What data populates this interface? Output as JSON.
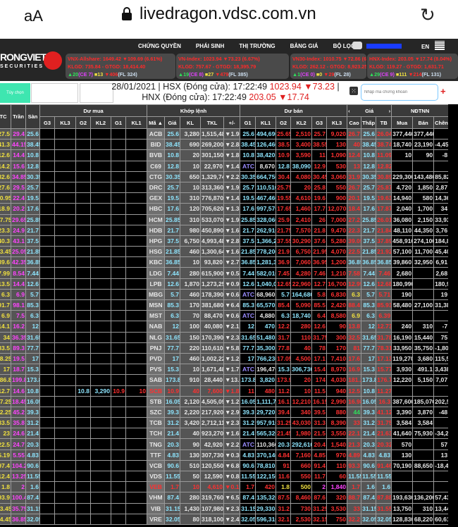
{
  "browser": {
    "text_size": "aA",
    "url": "livedragon.vdsc.com.vn",
    "lock_icon": "lock-icon",
    "reload_icon": "reload-icon"
  },
  "header": {
    "logo_text": "RONGVIET",
    "logo_sub": "SECURITIES",
    "nav": [
      "CHỨNG QUYỀN",
      "PHÁI SINH",
      "THỊ TRƯỜNG",
      "BẢNG GIÁ",
      "BỘ LỌC"
    ],
    "hotline": "+84 28 6299 2006",
    "lang": "EN",
    "indices": [
      {
        "line1": "VNX-Allshare: 1649.42 ▼109.69 (6.61%)",
        "line2": "KLGD: 735.84 - GTGD: 18,414.40",
        "up": "▲20",
        "ce": "(CE 7)",
        "ref": "■13",
        "down": "▼406",
        "fl": "(FL 324)"
      },
      {
        "line1": "VN-Index: 1023.94 ▼73.23 (6.67%)",
        "line2": "KLGD: 757.67 - GTGD: 18,395.79",
        "up": "▲19",
        "ce": "(CE 8)",
        "ref": "■27",
        "down": "▼479",
        "fl": "(FL 385)"
      },
      {
        "line1": "VN30-Index: 1010.75 ▼72.86 (6.73%)",
        "line2": "KLGD: 262.12 - GTGD: 8,923.25",
        "up": "▲1",
        "ce": "(CE 0)",
        "ref": "■0",
        "down": "▼29",
        "fl": "(FL 28)"
      },
      {
        "line1": "HNX-Index: 203.05 ▼17.74 (8.04%)",
        "line2": "KLGD: 119.27 - GTGD: 1,631.71",
        "up": "▲29",
        "ce": "(CE 9)",
        "ref": "■111",
        "down": "▼214",
        "fl": "(FL 131)"
      }
    ]
  },
  "toolbar": {
    "options_button": "Tùy chọn",
    "line1": "28/01/2021 | HSX (Đóng cửa): 17:22:49 ",
    "hsx_value": "1023.94 ▼73.23",
    "sep": " |",
    "line2": "HNX (Đóng cửa): 17:22:49 ",
    "hnx_value": "203.05 ▼17.74",
    "search_placeholder": "Nhập mã chứng khoán",
    "add": "+"
  },
  "table": {
    "groups": {
      "buy": "Dư mua",
      "match": "Khớp lệnh",
      "sell": "Dư bán",
      "price": "Giá",
      "foreign": "NĐTNN",
      "prev": "‹",
      "next": "›"
    },
    "columns": [
      "TC",
      "Trần",
      "Sàn",
      "G3",
      "KL3",
      "G2",
      "KL2",
      "G1",
      "KL1",
      "Mã ▲",
      "Giá",
      "KL",
      "TKL",
      "+/-",
      "G1",
      "KL1",
      "G2",
      "KL2",
      "G3",
      "KL3",
      "Cao",
      "Thấp",
      "TB",
      "Mua",
      "Bán",
      "Chênh"
    ],
    "colors": {
      "up": "#2fe05b",
      "down": "#ff3030",
      "ref": "#f0e040",
      "ceiling": "#ff44ff",
      "floor": "#8fe6ff"
    },
    "rows": [
      [
        "27.5",
        "29.4",
        "25.6",
        "",
        "",
        "",
        "",
        "",
        "",
        "ACB",
        "25.6",
        "3,280",
        "1,515,480",
        "▼1.9",
        "25.6",
        "494,690",
        "25.65",
        "2,510",
        "25.7",
        "9,020",
        "26.7",
        "25.6",
        "26.04",
        "377,440",
        "377,440.9",
        ""
      ],
      [
        "41.3",
        "44.15",
        "38.45",
        "",
        "",
        "",
        "",
        "",
        "",
        "BID",
        "38.45",
        "690",
        "269,200",
        "▼2.85",
        "38.45",
        "126,460",
        "38.5",
        "3,400",
        "38.55",
        "130",
        "40",
        "38.45",
        "38.74",
        "18,740",
        "23,190",
        "-4,45"
      ],
      [
        "12.6",
        "14.4",
        "10.8",
        "",
        "",
        "",
        "",
        "",
        "",
        "BVB",
        "10.8",
        "20",
        "301,150",
        "▼1.8",
        "10.8",
        "38,420",
        "10.9",
        "3,590",
        "11",
        "1,090",
        "12.4",
        "10.8",
        "11.09",
        "10",
        "90",
        "-8"
      ],
      [
        "14.2",
        "15.6",
        "12.8",
        "",
        "",
        "",
        "",
        "",
        "",
        "C69",
        "12.8",
        "10",
        "22,970",
        "▼1.4",
        "ATC",
        "8,670",
        "12.8",
        "38,090",
        "12.9",
        "530",
        "13",
        "12.8",
        "12.82",
        "",
        "",
        ""
      ],
      [
        "32.6",
        "34.85",
        "30.35",
        "",
        "",
        "",
        "",
        "",
        "",
        "CTG",
        "30.35",
        "650",
        "1,329,740",
        "▼2.25",
        "30.35",
        "664,750",
        "30.4",
        "4,080",
        "30.45",
        "3,060",
        "31.9",
        "30.35",
        "30.89",
        "229,300",
        "143,480",
        "85,82"
      ],
      [
        "27.6",
        "29.5",
        "25.7",
        "",
        "",
        "",
        "",
        "",
        "",
        "DRC",
        "25.7",
        "10",
        "313,360",
        "▼1.9",
        "25.7",
        "110,510",
        "25.75",
        "20",
        "25.8",
        "550",
        "26.7",
        "25.7",
        "25.87",
        "4,720",
        "1,850",
        "2,87"
      ],
      [
        "20.95",
        "22.4",
        "19.5",
        "",
        "",
        "",
        "",
        "",
        "",
        "GEX",
        "19.5",
        "310",
        "776,870",
        "▼1.45",
        "19.5",
        "467,460",
        "19.55",
        "4,610",
        "19.6",
        "900",
        "20.1",
        "19.5",
        "19.63",
        "14,940",
        "580",
        "14,36"
      ],
      [
        "18.9",
        "20.2",
        "17.6",
        "",
        "",
        "",
        "",
        "",
        "",
        "HBC",
        "17.6",
        "120",
        "705,620",
        "▼1.3",
        "17.6",
        "997,570",
        "17.65",
        "1,460",
        "17.7",
        "12,070",
        "18.4",
        "17.6",
        "17.87",
        "2,040",
        "1,700",
        "34"
      ],
      [
        "27.75",
        "29.65",
        "25.85",
        "",
        "",
        "",
        "",
        "",
        "",
        "HCM",
        "25.85",
        "310",
        "533,070",
        "▼1.9",
        "25.85",
        "328,060",
        "25.9",
        "2,410",
        "26",
        "7,000",
        "27.2",
        "25.85",
        "26.01",
        "36,080",
        "2,150",
        "33,93"
      ],
      [
        "23.3",
        "24.9",
        "21.7",
        "",
        "",
        "",
        "",
        "",
        "",
        "HDB",
        "21.7",
        "980",
        "450,890",
        "▼1.6",
        "21.7",
        "262,910",
        "21.75",
        "7,570",
        "21.8",
        "9,470",
        "22.3",
        "21.7",
        "21.84",
        "48,110",
        "44,350",
        "3,76"
      ],
      [
        "40.3",
        "43.1",
        "37.5",
        "",
        "",
        "",
        "",
        "",
        "",
        "HPG",
        "37.5",
        "6,750",
        "4,993,480",
        "▼2.8",
        "37.5",
        "1,366,210",
        "37.55",
        "30,290",
        "37.6",
        "5,280",
        "39.05",
        "37.5",
        "37.89",
        "458,910",
        "274,100",
        "184,81"
      ],
      [
        "23.45",
        "25.05",
        "21.85",
        "",
        "",
        "",
        "",
        "",
        "",
        "HSG",
        "21.85",
        "460",
        "1,300,640",
        "▼1.6",
        "21.85",
        "778,200",
        "21.9",
        "6,750",
        "21.95",
        "4,070",
        "22.5",
        "21.85",
        "21.92",
        "57,100",
        "11,700",
        "45,40"
      ],
      [
        "39.6",
        "42.35",
        "36.85",
        "",
        "",
        "",
        "",
        "",
        "",
        "KBC",
        "36.85",
        "10",
        "93,820",
        "▼2.75",
        "36.85",
        "1,281,320",
        "36.9",
        "7,060",
        "36.95",
        "1,200",
        "36.85",
        "36.85",
        "36.85",
        "39,860",
        "32,950",
        "6,91"
      ],
      [
        "7.99",
        "8.54",
        "7.44",
        "",
        "",
        "",
        "",
        "",
        "",
        "LDG",
        "7.44",
        "280",
        "615,900",
        "▼0.55",
        "7.44",
        "582,010",
        "7.45",
        "4,280",
        "7.46",
        "1,210",
        "7.58",
        "7.44",
        "7.46",
        "2,680",
        "",
        "2,68"
      ],
      [
        "13.5",
        "14.4",
        "12.6",
        "",
        "",
        "",
        "",
        "",
        "",
        "LPB",
        "12.6",
        "1,870",
        "1,273,250",
        "▼0.9",
        "12.6",
        "1,040,020",
        "12.65",
        "22,960",
        "12.7",
        "16,700",
        "12.95",
        "12.6",
        "12.68",
        "180,990",
        "",
        "180,99"
      ],
      [
        "6.3",
        "6.9",
        "5.7",
        "",
        "",
        "",
        "",
        "",
        "",
        "MBG",
        "5.7",
        "460",
        "178,390",
        "▼0.6",
        "ATC",
        "68,960",
        "5.7",
        "164,680",
        "5.8",
        "6,830",
        "6.3",
        "5.7",
        "5.71",
        "190",
        "",
        "19"
      ],
      [
        "91.7",
        "98.1",
        "85.3",
        "",
        "",
        "",
        "",
        "",
        "",
        "MSN",
        "85.3",
        "170",
        "381,680",
        "▼6.4",
        "85.3",
        "65,570",
        "85.4",
        "5,090",
        "85.5",
        "2,420",
        "88.4",
        "85.3",
        "85.93",
        "58,480",
        "27,100",
        "31,38"
      ],
      [
        "6.9",
        "7.5",
        "6.3",
        "",
        "",
        "",
        "",
        "",
        "",
        "MST",
        "6.3",
        "70",
        "88,470",
        "▼0.6",
        "ATC",
        "4,880",
        "6.3",
        "18,740",
        "6.4",
        "8,580",
        "6.9",
        "6.3",
        "6.39",
        "",
        "",
        ""
      ],
      [
        "14.1",
        "16.2",
        "12",
        "",
        "",
        "",
        "",
        "",
        "",
        "NAB",
        "12",
        "100",
        "40,080",
        "▼2.1",
        "12",
        "470",
        "12.2",
        "280",
        "12.6",
        "90",
        "13.8",
        "12",
        "12.73",
        "240",
        "310",
        "-7"
      ],
      [
        "34",
        "36.35",
        "31.65",
        "",
        "",
        "",
        "",
        "",
        "",
        "NLG",
        "31.65",
        "150",
        "170,390",
        "▼2.35",
        "31.65",
        "51,480",
        "31.7",
        "110",
        "31.75",
        "300",
        "32.5",
        "31.65",
        "31.78",
        "16,190",
        "15,440",
        "75"
      ],
      [
        "83.5",
        "89.3",
        "77.7",
        "",
        "",
        "",
        "",
        "",
        "",
        "PNJ",
        "77.7",
        "220",
        "110,610",
        "▼5.8",
        "77.7",
        "35,300",
        "77.8",
        "40",
        "78",
        "170",
        "81",
        "77.7",
        "78.31",
        "33,950",
        "35,750",
        "-1,80"
      ],
      [
        "18.25",
        "19.5",
        "17",
        "",
        "",
        "",
        "",
        "",
        "",
        "PVD",
        "17",
        "460",
        "1,002,220",
        "▼1.25",
        "17",
        "766,230",
        "17.05",
        "4,500",
        "17.1",
        "7,410",
        "17.6",
        "17",
        "17.13",
        "119,270",
        "3,680",
        "115,59"
      ],
      [
        "17",
        "18.7",
        "15.3",
        "",
        "",
        "",
        "",
        "",
        "",
        "PVS",
        "15.3",
        "10",
        "1,671,480",
        "▼1.7",
        "ATC",
        "196,470",
        "15.3",
        "306,730",
        "15.4",
        "8,970",
        "16.9",
        "15.3",
        "15.77",
        "3,930",
        "491.1",
        "3,438"
      ],
      [
        "186.8",
        "199.8",
        "173.8",
        "",
        "",
        "",
        "",
        "",
        "",
        "SAB",
        "173.8",
        "910",
        "28,440",
        "▼13.0",
        "173.8",
        "3,820",
        "173.9",
        "20",
        "174",
        "4,030",
        "181.2",
        "173.8",
        "176.78",
        "12,220",
        "5,150",
        "7,07"
      ],
      [
        "12.7",
        "14.6",
        "10.8",
        "",
        "",
        "10.8",
        "3,290",
        "10.9",
        "10",
        "SCB",
        "10.9",
        "40",
        "7,600",
        "▼1.8",
        "11",
        "480",
        "11.2",
        "10",
        "11.5",
        "940",
        "12.5",
        "10.8",
        "11.27",
        "",
        "",
        ""
      ],
      [
        "17.25",
        "18.45",
        "16.05",
        "",
        "",
        "",
        "",
        "",
        "",
        "STB",
        "16.05",
        "2,120",
        "4,505,090",
        "▼1.2",
        "16.05",
        "1,111,700",
        "16.1",
        "12,210",
        "16.15",
        "2,990",
        "16.98",
        "16.05",
        "16.3",
        "387,600",
        "185,070",
        "202,53"
      ],
      [
        "42.25",
        "45.2",
        "39.3",
        "",
        "",
        "",
        "",
        "",
        "",
        "SZC",
        "39.3",
        "2,220",
        "217,920",
        "▼2.95",
        "39.3",
        "29,720",
        "39.4",
        "340",
        "39.5",
        "880",
        "44",
        "39.3",
        "41.12",
        "3,390",
        "3,870",
        "-48"
      ],
      [
        "33.5",
        "35.8",
        "31.2",
        "",
        "",
        "",
        "",
        "",
        "",
        "TCB",
        "31.2",
        "3,420",
        "2,712,110",
        "▼2.3",
        "31.2",
        "957,910",
        "31.25",
        "43,030",
        "31.3",
        "8,390",
        "33",
        "31.2",
        "31.75",
        "3,584",
        "3,584",
        ""
      ],
      [
        "23",
        "24.6",
        "21.4",
        "",
        "",
        "",
        "",
        "",
        "",
        "TCH",
        "21.4",
        "40",
        "923,270",
        "▼1.6",
        "21.4",
        "565,320",
        "21.45",
        "1,980",
        "21.5",
        "3,550",
        "22.1",
        "21.4",
        "21.63",
        "41,640",
        "75,930",
        "-34,29"
      ],
      [
        "22.5",
        "24.7",
        "20.3",
        "",
        "",
        "",
        "",
        "",
        "",
        "TNG",
        "20.3",
        "90",
        "42,920",
        "▼2.2",
        "ATC",
        "110,360",
        "20.3",
        "292,610",
        "20.4",
        "1,540",
        "21.3",
        "20.3",
        "20.32",
        "570",
        "",
        "57"
      ],
      [
        "5.19",
        "5.55",
        "4.83",
        "",
        "",
        "",
        "",
        "",
        "",
        "TTF",
        "4.83",
        "130",
        "307,730",
        "▼0.36",
        "4.83",
        "370,140",
        "4.84",
        "7,160",
        "4.85",
        "970",
        "4.89",
        "4.83",
        "4.83",
        "130",
        "",
        "13"
      ],
      [
        "97.4",
        "104.2",
        "90.6",
        "",
        "",
        "",
        "",
        "",
        "",
        "VCB",
        "90.6",
        "510",
        "120,550",
        "▼6.8",
        "90.6",
        "78,810",
        "91",
        "660",
        "91.4",
        "110",
        "93.3",
        "90.6",
        "91.46",
        "70,190",
        "88,650",
        "-18,46"
      ],
      [
        "12.4",
        "13.25",
        "11.55",
        "",
        "",
        "",
        "",
        "",
        "",
        "VDS",
        "11.55",
        "50",
        "12,590",
        "▼0.85",
        "11.55",
        "122,150",
        "11.6",
        "550",
        "11.7",
        "60",
        "11.55",
        "11.55",
        "11.55",
        "",
        "",
        ""
      ],
      [
        "1.8",
        "2",
        "1.6",
        "",
        "",
        "",
        "",
        "",
        "",
        "VEB",
        "1.7",
        "10",
        "4,610",
        "▼0.1",
        "1.7",
        "420",
        "1.8",
        "500",
        "2",
        "1,840",
        "1.7",
        "1.6",
        "1.6",
        "",
        "",
        ""
      ],
      [
        "93.9",
        "100.4",
        "87.4",
        "",
        "",
        "",
        "",
        "",
        "",
        "VHM",
        "87.4",
        "280",
        "319,760",
        "▼6.5",
        "87.4",
        "135,320",
        "87.5",
        "8,460",
        "87.6",
        "320",
        "88.7",
        "87.4",
        "87.88",
        "193,630",
        "136,200",
        "57,43"
      ],
      [
        "33.45",
        "35.75",
        "31.15",
        "",
        "",
        "",
        "",
        "",
        "",
        "VIB",
        "31.15",
        "1,430",
        "107,980",
        "▼2.3",
        "31.15",
        "29,330",
        "31.2",
        "730",
        "31.25",
        "3,530",
        "33",
        "31.15",
        "31.55",
        "13,750",
        "310",
        "13,44"
      ],
      [
        "34.45",
        "36.85",
        "32.05",
        "",
        "",
        "",
        "",
        "",
        "",
        "VRE",
        "32.05",
        "80",
        "318,100",
        "▼2.4",
        "32.05",
        "596,310",
        "32.1",
        "2,530",
        "32.15",
        "750",
        "32.2",
        "32.05",
        "32.05",
        "128,830",
        "68,220",
        "60,61"
      ]
    ]
  }
}
